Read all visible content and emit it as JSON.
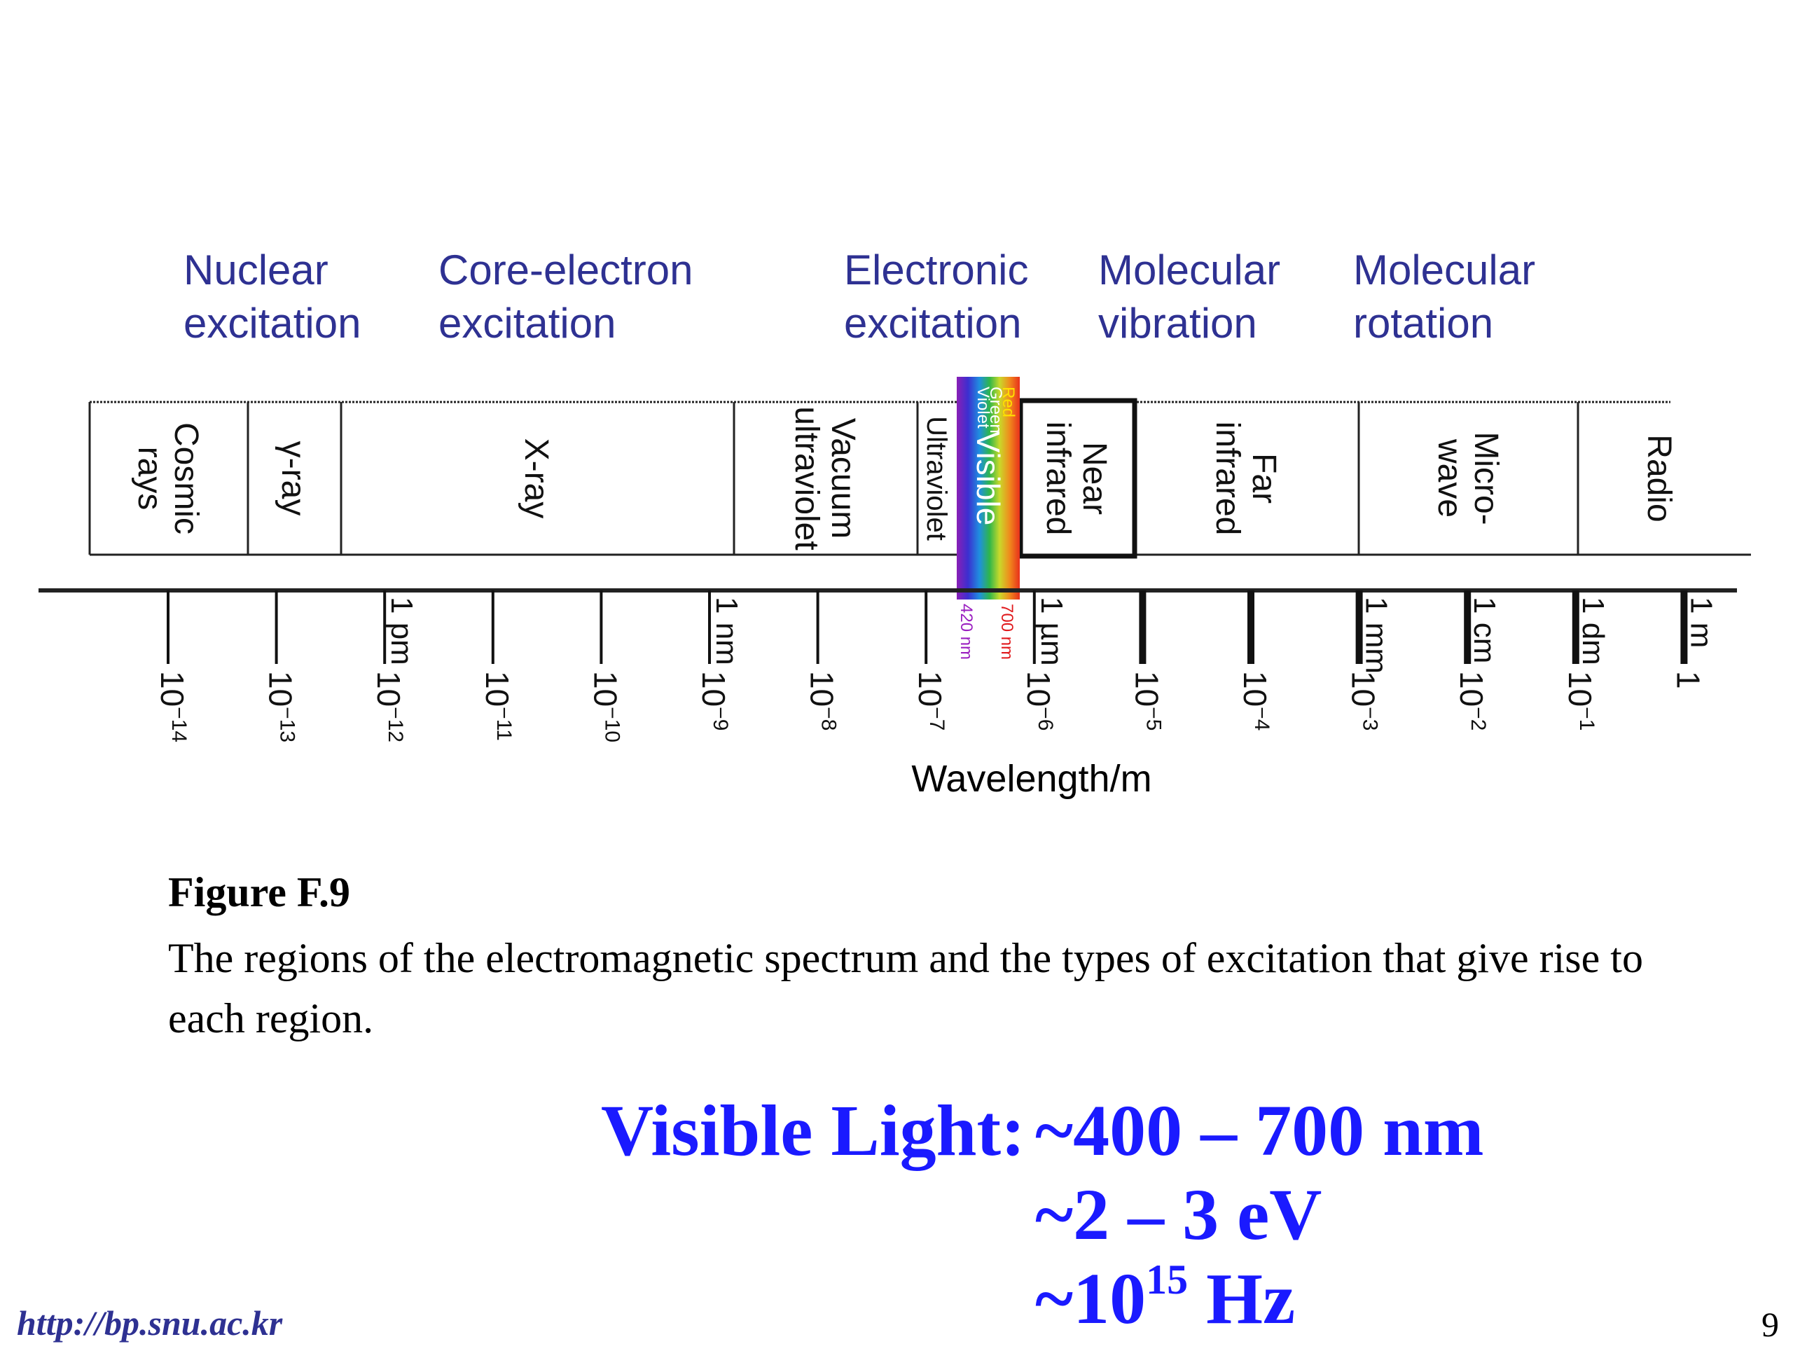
{
  "excitations": [
    {
      "line1": "Nuclear",
      "line2": "excitation"
    },
    {
      "line1": "Core-electron",
      "line2": "excitation"
    },
    {
      "line1": "Electronic",
      "line2": "excitation"
    },
    {
      "line1": "Molecular",
      "line2": "vibration"
    },
    {
      "line1": "Molecular",
      "line2": "rotation"
    }
  ],
  "regions": [
    {
      "label": "Cosmic rays",
      "lines": [
        "Cosmic",
        "rays"
      ]
    },
    {
      "label": "γ-ray",
      "lines": [
        "γ-ray"
      ]
    },
    {
      "label": "X-ray",
      "lines": [
        "X-ray"
      ]
    },
    {
      "label": "Vacuum ultraviolet",
      "lines": [
        "Vacuum",
        "ultraviolet"
      ]
    },
    {
      "label": "Ultraviolet",
      "lines": [
        "Ultraviolet"
      ]
    },
    {
      "label": "Visible",
      "lines": [
        "Visible"
      ]
    },
    {
      "label": "Near infrared",
      "lines": [
        "Near",
        "infrared"
      ]
    },
    {
      "label": "Far infrared",
      "lines": [
        "Far",
        "infrared"
      ]
    },
    {
      "label": "Micro-wave",
      "lines": [
        "Micro-",
        "wave"
      ]
    },
    {
      "label": "Radio",
      "lines": [
        "Radio"
      ]
    }
  ],
  "visible_band": {
    "color_labels": [
      "Red",
      "Green",
      "Violet"
    ],
    "edge_low": "420 nm",
    "edge_high": "700 nm"
  },
  "ticks": [
    {
      "exponent": "−14",
      "unit": ""
    },
    {
      "exponent": "−13",
      "unit": ""
    },
    {
      "exponent": "−12",
      "unit": "1 pm"
    },
    {
      "exponent": "−11",
      "unit": ""
    },
    {
      "exponent": "−10",
      "unit": ""
    },
    {
      "exponent": "−9",
      "unit": "1 nm"
    },
    {
      "exponent": "−8",
      "unit": ""
    },
    {
      "exponent": "−7",
      "unit": ""
    },
    {
      "exponent": "−6",
      "unit": "1 µm"
    },
    {
      "exponent": "−5",
      "unit": ""
    },
    {
      "exponent": "−4",
      "unit": ""
    },
    {
      "exponent": "−3",
      "unit": "1 mm"
    },
    {
      "exponent": "−2",
      "unit": "1 cm"
    },
    {
      "exponent": "−1",
      "unit": "1 dm"
    },
    {
      "exponent": "",
      "unit": "1 m",
      "plain": "1"
    }
  ],
  "axis_label": "Wavelength/m",
  "caption": {
    "title": "Figure F.9",
    "text": "The regions of the electromagnetic spectrum and the types of excitation that give rise to each region."
  },
  "visible_light": {
    "label": "Visible Light:",
    "wavelength": "~400 – 700 nm",
    "energy": "~2 – 3 eV",
    "freq_prefix": "~10",
    "freq_exp": "15",
    "freq_unit": " Hz"
  },
  "footer": {
    "url": "http://bp.snu.ac.kr",
    "page": "9"
  },
  "colors": {
    "excitation_text": "#2e3192",
    "visible_light_text": "#1a1aff"
  }
}
